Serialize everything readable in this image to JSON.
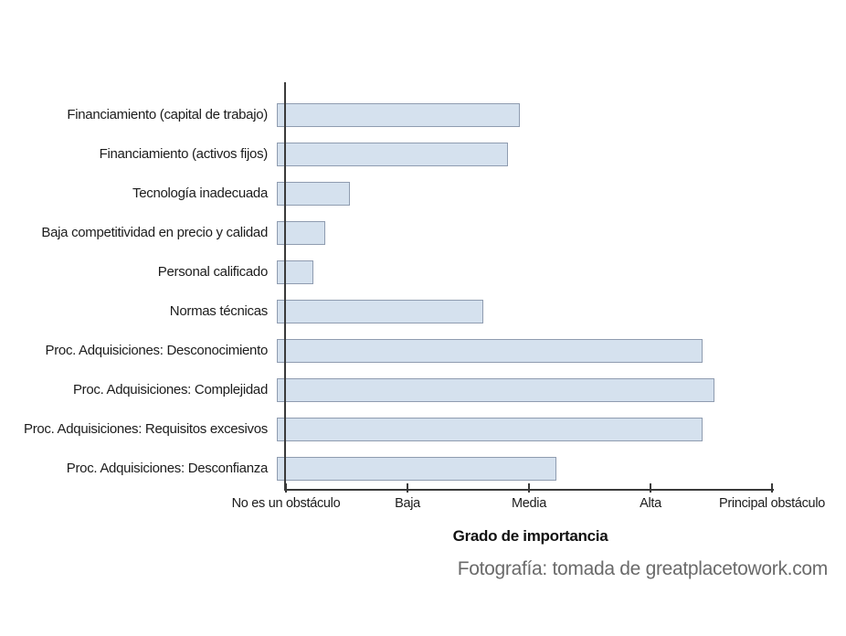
{
  "chart_data": {
    "type": "bar",
    "orientation": "horizontal",
    "title": "",
    "xlabel": "Grado de importancia",
    "ylabel": "",
    "xlim": [
      0,
      4
    ],
    "grid": false,
    "legend": false,
    "categories": [
      "Financiamiento (capital de trabajo)",
      "Financiamiento (activos fijos)",
      "Tecnología inadecuada",
      "Baja competitividad en precio y calidad",
      "Personal calificado",
      "Normas técnicas",
      "Proc. Adquisiciones: Desconocimiento",
      "Proc. Adquisiciones: Complejidad",
      "Proc. Adquisiciones: Requisitos excesivos",
      "Proc. Adquisiciones: Desconfianza"
    ],
    "values": [
      2.0,
      1.9,
      0.6,
      0.4,
      0.3,
      1.7,
      3.5,
      3.6,
      3.5,
      2.3
    ],
    "x_tick_labels": [
      "No es un obstáculo",
      "Baja",
      "Media",
      "Alta",
      "Principal obstáculo"
    ],
    "colors": {
      "bar_fill": "#d5e1ee",
      "bar_border": "#8f9cb0",
      "axis": "#3a3a3a",
      "label_text": "#1c1c1c",
      "caption_text": "#6a6a6a"
    }
  },
  "caption": "Fotografía: tomada de greatplacetowork.com"
}
